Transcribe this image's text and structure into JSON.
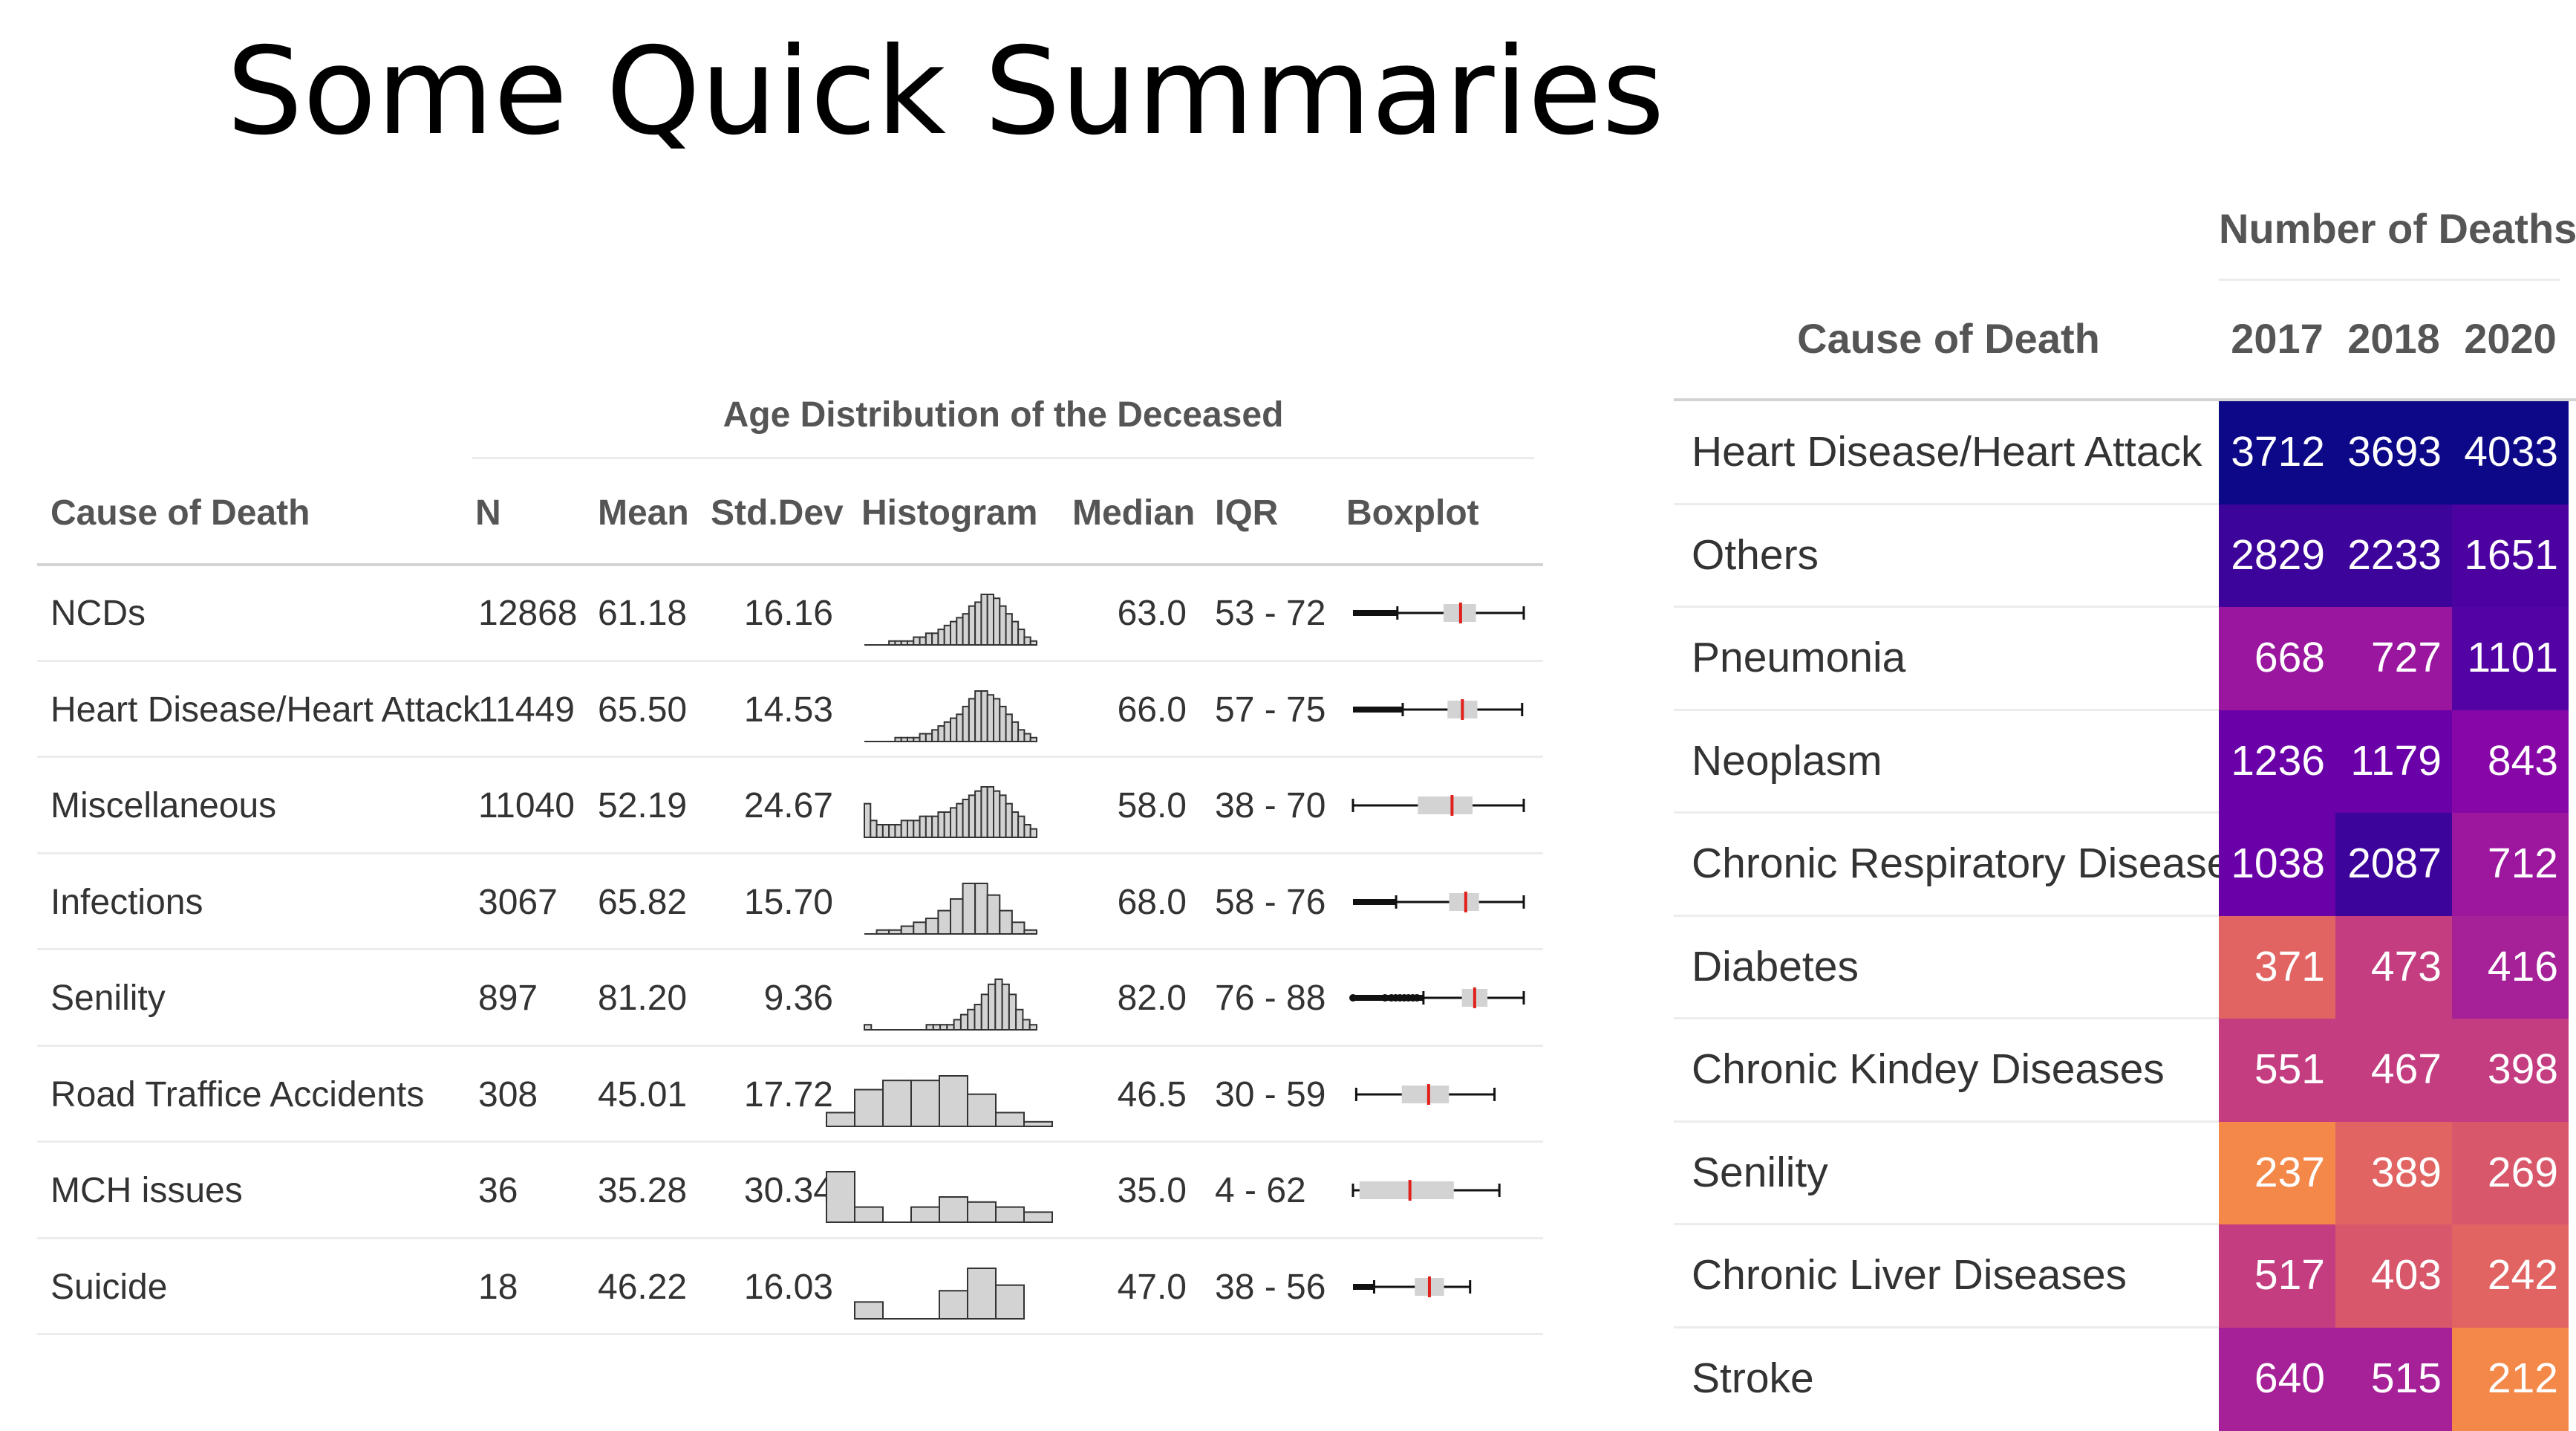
{
  "title": "Some Quick Summaries",
  "chart_data": [
    {
      "type": "table",
      "spanner": "Age Distribution of the Deceased",
      "columns": [
        "Cause of Death",
        "N",
        "Mean",
        "Std.Dev",
        "Histogram",
        "Median",
        "IQR",
        "Boxplot"
      ],
      "rows": [
        {
          "cause": "NCDs",
          "n": "12868",
          "mean": "61.18",
          "sd": "16.16",
          "median": "63.0",
          "iqr": "53 - 72",
          "box": {
            "whisker_lo": 26,
            "q1": 53,
            "med": 63,
            "q3": 72,
            "whisker_hi": 100,
            "min": 0,
            "max": 100
          },
          "hist": [
            0,
            0,
            0,
            0,
            1,
            1,
            1,
            1,
            2,
            2,
            3,
            3,
            4,
            5,
            6,
            7,
            8,
            10,
            11,
            13,
            13,
            12,
            10,
            8,
            6,
            4,
            2,
            1
          ]
        },
        {
          "cause": "Heart Disease/Heart Attack",
          "n": "11449",
          "mean": "65.50",
          "sd": "14.53",
          "median": "66.0",
          "iqr": "57 - 75",
          "box": {
            "whisker_lo": 30,
            "q1": 57,
            "med": 66,
            "q3": 75,
            "whisker_hi": 102,
            "min": 0,
            "max": 103
          },
          "hist": [
            0,
            0,
            0,
            0,
            0,
            1,
            1,
            1,
            1,
            2,
            2,
            3,
            4,
            5,
            6,
            7,
            9,
            11,
            13,
            13,
            12,
            11,
            9,
            7,
            5,
            3,
            2,
            1
          ]
        },
        {
          "cause": "Miscellaneous",
          "n": "11040",
          "mean": "52.19",
          "sd": "24.67",
          "median": "58.0",
          "iqr": "38 - 70",
          "box": {
            "whisker_lo": 0,
            "q1": 38,
            "med": 58,
            "q3": 70,
            "whisker_hi": 100,
            "min": 0,
            "max": 100
          },
          "hist": [
            8,
            4,
            3,
            3,
            3,
            3,
            4,
            4,
            4,
            5,
            5,
            5,
            6,
            6,
            7,
            8,
            9,
            10,
            11,
            12,
            12,
            11,
            10,
            8,
            6,
            5,
            3,
            2
          ]
        },
        {
          "cause": "Infections",
          "n": "3067",
          "mean": "65.82",
          "sd": "15.70",
          "median": "68.0",
          "iqr": "58 - 76",
          "box": {
            "whisker_lo": 26,
            "q1": 58,
            "med": 68,
            "q3": 76,
            "whisker_hi": 103,
            "min": 0,
            "max": 103
          },
          "hist": [
            0,
            1,
            1,
            2,
            3,
            4,
            6,
            9,
            13,
            13,
            10,
            6,
            3,
            1
          ]
        },
        {
          "cause": "Senility",
          "n": "897",
          "mean": "81.20",
          "sd": "9.36",
          "median": "82.0",
          "iqr": "76 - 88",
          "box": {
            "whisker_lo": 58,
            "q1": 76,
            "med": 82,
            "q3": 88,
            "whisker_hi": 105,
            "min": 25,
            "max": 105,
            "outliers": [
              25,
              40,
              43,
              45,
              47,
              49,
              51,
              53,
              55
            ]
          },
          "hist": [
            1,
            0,
            0,
            0,
            0,
            0,
            0,
            0,
            0,
            1,
            1,
            1,
            1,
            2,
            3,
            4,
            5,
            7,
            9,
            10,
            9,
            7,
            4,
            2,
            1
          ]
        },
        {
          "cause": "Road Traffice Accidents",
          "n": "308",
          "mean": "45.01",
          "sd": "17.72",
          "median": "46.5",
          "iqr": "30 - 59",
          "box": {
            "whisker_lo": 2,
            "q1": 30,
            "med": 46.5,
            "q3": 59,
            "whisker_hi": 87,
            "min": 0,
            "max": 105
          },
          "hist": [
            3,
            8,
            10,
            10,
            11,
            7,
            3,
            1
          ]
        },
        {
          "cause": "MCH issues",
          "n": "36",
          "mean": "35.28",
          "sd": "30.34",
          "median": "35.0",
          "iqr": "4 - 62",
          "box": {
            "whisker_lo": 0,
            "q1": 4,
            "med": 35,
            "q3": 62,
            "whisker_hi": 90,
            "min": 0,
            "max": 105
          },
          "hist": [
            10,
            3,
            0,
            3,
            5,
            4,
            3,
            2
          ]
        },
        {
          "cause": "Suicide",
          "n": "18",
          "mean": "46.22",
          "sd": "16.03",
          "median": "47.0",
          "iqr": "38 - 56",
          "box": {
            "whisker_lo": 13,
            "q1": 38,
            "med": 47,
            "q3": 56,
            "whisker_hi": 72,
            "min": 0,
            "max": 105
          },
          "hist": [
            3,
            0,
            0,
            5,
            9,
            6
          ]
        }
      ]
    },
    {
      "type": "heatmap",
      "spanner": "Number of Deaths",
      "row_header": "Cause of Death",
      "years": [
        "2017",
        "2018",
        "2020"
      ],
      "rows": [
        {
          "cause": "Heart Disease/Heart Attack",
          "values": [
            3712,
            3693,
            4033
          ]
        },
        {
          "cause": "Others",
          "values": [
            2829,
            2233,
            1651
          ]
        },
        {
          "cause": "Pneumonia",
          "values": [
            668,
            727,
            1101
          ]
        },
        {
          "cause": "Neoplasm",
          "values": [
            1236,
            1179,
            843
          ]
        },
        {
          "cause": "Chronic Respiratory Diseases",
          "values": [
            1038,
            2087,
            712
          ]
        },
        {
          "cause": "Diabetes",
          "values": [
            371,
            473,
            416
          ]
        },
        {
          "cause": "Chronic Kindey Diseases",
          "values": [
            551,
            467,
            398
          ]
        },
        {
          "cause": "Senility",
          "values": [
            237,
            389,
            269
          ]
        },
        {
          "cause": "Chronic Liver Diseases",
          "values": [
            517,
            403,
            242
          ]
        },
        {
          "cause": "Stroke",
          "values": [
            640,
            515,
            212
          ]
        }
      ],
      "colors": {
        "2017": [
          "#0d0887",
          "#3d049b",
          "#9a169f",
          "#6a00a8",
          "#6a00a8",
          "#e16462",
          "#c33d80",
          "#f48849",
          "#c33d80",
          "#a62098"
        ],
        "2018": [
          "#0d0887",
          "#3d049b",
          "#9a169f",
          "#6a00a8",
          "#3d049b",
          "#c33d80",
          "#c33d80",
          "#e16462",
          "#d8576b",
          "#a62098"
        ],
        "2020": [
          "#0d0887",
          "#4c02a1",
          "#5302a3",
          "#8607a6",
          "#9c179e",
          "#a62098",
          "#c33d80",
          "#d8576b",
          "#e16462",
          "#f48849"
        ]
      }
    }
  ]
}
